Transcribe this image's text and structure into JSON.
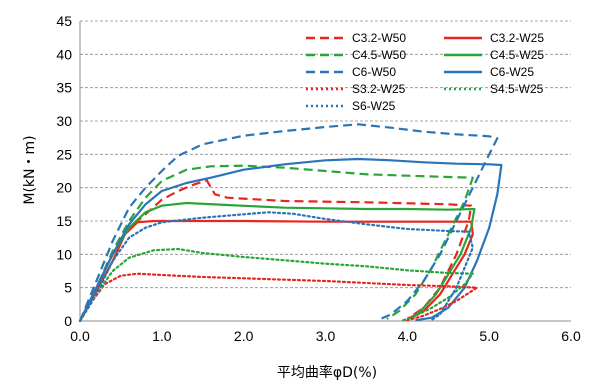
{
  "chart_data": {
    "type": "line",
    "title": "",
    "xlabel": "平均曲率φD(%)",
    "ylabel": "M(kN・m)",
    "xlim": [
      0,
      6
    ],
    "ylim": [
      0,
      45
    ],
    "xticks": [
      "0.0",
      "1.0",
      "2.0",
      "3.0",
      "4.0",
      "5.0",
      "6.0"
    ],
    "yticks": [
      "0",
      "5",
      "10",
      "15",
      "20",
      "25",
      "30",
      "35",
      "40",
      "45"
    ],
    "grid": "horizontal-dashed",
    "legend_position": "top-right",
    "series": [
      {
        "name": "C3.2-W50",
        "color": "#e8261f",
        "style": "dashed",
        "points": [
          [
            0,
            0
          ],
          [
            0.2,
            5
          ],
          [
            0.4,
            10
          ],
          [
            0.6,
            14
          ],
          [
            0.8,
            16
          ],
          [
            1.0,
            18.2
          ],
          [
            1.2,
            19.5
          ],
          [
            1.4,
            20.5
          ],
          [
            1.55,
            21.1
          ],
          [
            1.6,
            20
          ],
          [
            1.65,
            19
          ],
          [
            1.8,
            18.5
          ],
          [
            2.5,
            18
          ],
          [
            3.5,
            17.8
          ],
          [
            4.5,
            17.5
          ],
          [
            4.78,
            17.3
          ],
          [
            4.75,
            15
          ],
          [
            4.6,
            10
          ],
          [
            4.4,
            5
          ],
          [
            4.2,
            2
          ],
          [
            4.0,
            0.3
          ]
        ]
      },
      {
        "name": "C3.2-W25",
        "color": "#e8261f",
        "style": "solid",
        "points": [
          [
            0,
            0
          ],
          [
            0.2,
            4.5
          ],
          [
            0.4,
            9
          ],
          [
            0.55,
            13
          ],
          [
            0.7,
            14.8
          ],
          [
            0.9,
            15
          ],
          [
            2.0,
            15
          ],
          [
            3.0,
            14.9
          ],
          [
            4.0,
            14.9
          ],
          [
            4.78,
            14.9
          ],
          [
            4.8,
            13
          ],
          [
            4.7,
            10
          ],
          [
            4.55,
            7
          ],
          [
            4.4,
            4
          ],
          [
            4.2,
            1.5
          ],
          [
            4.0,
            0.3
          ]
        ]
      },
      {
        "name": "C4.5-W50",
        "color": "#2aa539",
        "style": "dashed",
        "points": [
          [
            0,
            0
          ],
          [
            0.2,
            5
          ],
          [
            0.4,
            10.5
          ],
          [
            0.6,
            15
          ],
          [
            0.8,
            18.5
          ],
          [
            1.0,
            21
          ],
          [
            1.3,
            22.7
          ],
          [
            1.6,
            23.2
          ],
          [
            2.0,
            23.3
          ],
          [
            2.5,
            23
          ],
          [
            3.0,
            22.5
          ],
          [
            3.5,
            22
          ],
          [
            4.0,
            21.8
          ],
          [
            4.5,
            21.6
          ],
          [
            4.8,
            21.5
          ],
          [
            4.7,
            18
          ],
          [
            4.5,
            13
          ],
          [
            4.3,
            8
          ],
          [
            4.1,
            4
          ],
          [
            3.9,
            1.5
          ],
          [
            3.75,
            0.3
          ]
        ]
      },
      {
        "name": "C4.5-W25",
        "color": "#2aa539",
        "style": "solid",
        "points": [
          [
            0,
            0
          ],
          [
            0.2,
            5
          ],
          [
            0.4,
            10
          ],
          [
            0.6,
            14
          ],
          [
            0.8,
            16.3
          ],
          [
            1.0,
            17.3
          ],
          [
            1.3,
            17.7
          ],
          [
            1.8,
            17.4
          ],
          [
            2.5,
            17
          ],
          [
            3.0,
            16.9
          ],
          [
            3.5,
            16.8
          ],
          [
            4.0,
            16.8
          ],
          [
            4.5,
            16.7
          ],
          [
            4.82,
            16.8
          ],
          [
            4.78,
            14
          ],
          [
            4.65,
            10
          ],
          [
            4.5,
            7
          ],
          [
            4.35,
            4
          ],
          [
            4.2,
            2
          ],
          [
            4.05,
            0.3
          ]
        ]
      },
      {
        "name": "C6-W50",
        "color": "#2a75b9",
        "style": "dashed",
        "points": [
          [
            0,
            0
          ],
          [
            0.2,
            6
          ],
          [
            0.4,
            12
          ],
          [
            0.6,
            17
          ],
          [
            0.8,
            20
          ],
          [
            1.0,
            22.5
          ],
          [
            1.2,
            24.8
          ],
          [
            1.5,
            26.5
          ],
          [
            2.0,
            27.8
          ],
          [
            2.5,
            28.5
          ],
          [
            3.0,
            29.1
          ],
          [
            3.4,
            29.5
          ],
          [
            3.8,
            29
          ],
          [
            4.2,
            28.4
          ],
          [
            4.6,
            28
          ],
          [
            5.0,
            27.7
          ],
          [
            5.1,
            27.4
          ],
          [
            5.0,
            25
          ],
          [
            4.8,
            20
          ],
          [
            4.6,
            15
          ],
          [
            4.4,
            10
          ],
          [
            4.2,
            6
          ],
          [
            4.0,
            3
          ],
          [
            3.8,
            1
          ],
          [
            3.65,
            0.2
          ]
        ]
      },
      {
        "name": "C6-W25",
        "color": "#2a75b9",
        "style": "solid",
        "points": [
          [
            0,
            0
          ],
          [
            0.2,
            5
          ],
          [
            0.4,
            10
          ],
          [
            0.6,
            14.5
          ],
          [
            0.8,
            17.5
          ],
          [
            1.0,
            19.5
          ],
          [
            1.3,
            20.7
          ],
          [
            1.6,
            21.5
          ],
          [
            2.0,
            22.7
          ],
          [
            2.5,
            23.5
          ],
          [
            3.0,
            24.1
          ],
          [
            3.4,
            24.3
          ],
          [
            3.8,
            24.1
          ],
          [
            4.2,
            23.8
          ],
          [
            4.6,
            23.6
          ],
          [
            5.0,
            23.5
          ],
          [
            5.15,
            23.4
          ],
          [
            5.1,
            19
          ],
          [
            5.0,
            14
          ],
          [
            4.85,
            9
          ],
          [
            4.7,
            5
          ],
          [
            4.5,
            2
          ],
          [
            4.3,
            0.5
          ],
          [
            4.1,
            0.1
          ]
        ]
      },
      {
        "name": "S3.2-W25",
        "color": "#e8261f",
        "style": "dotted",
        "points": [
          [
            0,
            0
          ],
          [
            0.15,
            3
          ],
          [
            0.3,
            5.5
          ],
          [
            0.5,
            6.8
          ],
          [
            0.7,
            7.1
          ],
          [
            1.0,
            6.9
          ],
          [
            1.5,
            6.6
          ],
          [
            2.0,
            6.4
          ],
          [
            2.5,
            6.2
          ],
          [
            3.0,
            6
          ],
          [
            3.5,
            5.7
          ],
          [
            4.0,
            5.4
          ],
          [
            4.5,
            5.2
          ],
          [
            4.85,
            5
          ],
          [
            4.6,
            3
          ],
          [
            4.4,
            1.8
          ],
          [
            4.2,
            0.8
          ],
          [
            4.0,
            0.1
          ]
        ]
      },
      {
        "name": "S4.5-W25",
        "color": "#2aa539",
        "style": "dotted",
        "points": [
          [
            0,
            0
          ],
          [
            0.2,
            4
          ],
          [
            0.4,
            7.5
          ],
          [
            0.6,
            9.5
          ],
          [
            0.9,
            10.6
          ],
          [
            1.2,
            10.8
          ],
          [
            1.5,
            10.2
          ],
          [
            2.0,
            9.6
          ],
          [
            2.5,
            9.1
          ],
          [
            3.0,
            8.6
          ],
          [
            3.5,
            8.2
          ],
          [
            4.0,
            7.6
          ],
          [
            4.5,
            7.2
          ],
          [
            4.8,
            7.1
          ],
          [
            4.7,
            5.5
          ],
          [
            4.5,
            3.5
          ],
          [
            4.3,
            2
          ],
          [
            4.1,
            0.8
          ],
          [
            3.95,
            0.1
          ]
        ]
      },
      {
        "name": "S6-W25",
        "color": "#2a75b9",
        "style": "dotted",
        "points": [
          [
            0,
            0
          ],
          [
            0.2,
            4
          ],
          [
            0.4,
            9
          ],
          [
            0.6,
            12.5
          ],
          [
            0.8,
            14
          ],
          [
            1.0,
            14.8
          ],
          [
            1.5,
            15.5
          ],
          [
            2.0,
            16
          ],
          [
            2.3,
            16.3
          ],
          [
            2.6,
            16.1
          ],
          [
            3.0,
            15.3
          ],
          [
            3.5,
            14.5
          ],
          [
            4.0,
            13.8
          ],
          [
            4.5,
            13.5
          ],
          [
            4.75,
            13.4
          ],
          [
            4.8,
            11
          ],
          [
            4.7,
            8
          ],
          [
            4.6,
            5
          ],
          [
            4.5,
            3
          ],
          [
            4.4,
            1
          ],
          [
            4.3,
            0.2
          ]
        ]
      }
    ]
  }
}
